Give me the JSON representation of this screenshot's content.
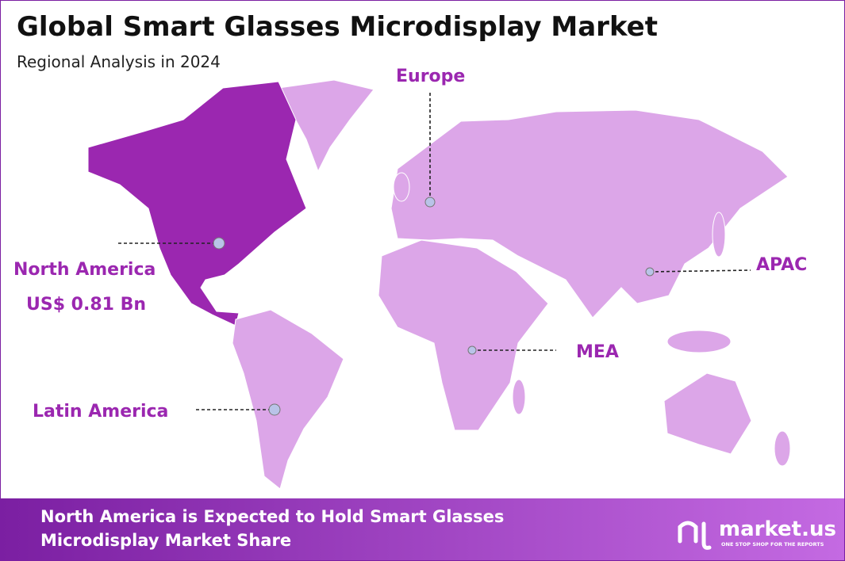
{
  "header": {
    "title": "Global Smart Glasses Microdisplay Market",
    "subtitle": "Regional Analysis in 2024"
  },
  "regions": [
    {
      "name": "Europe"
    },
    {
      "name": "North America",
      "value_label": "US$ 0.81 Bn"
    },
    {
      "name": "APAC"
    },
    {
      "name": "MEA"
    },
    {
      "name": "Latin America"
    }
  ],
  "footer": {
    "text": "North America is Expected to Hold Smart Glasses Microdisplay Market Share",
    "brand": "market.us",
    "tagline": "ONE STOP SHOP FOR THE REPORTS"
  }
}
